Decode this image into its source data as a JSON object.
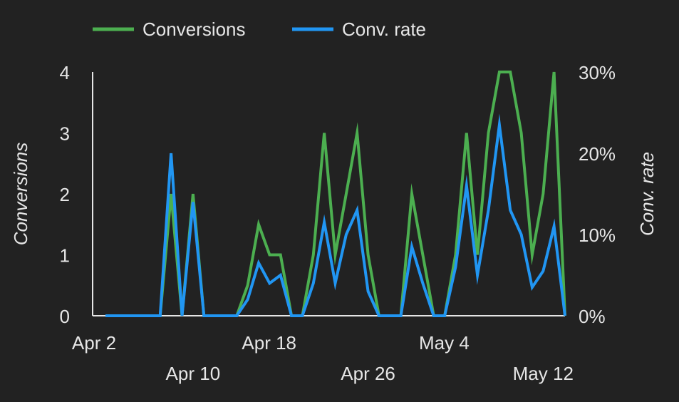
{
  "chart_data": {
    "type": "line",
    "x": [
      "Apr 2",
      "Apr 3",
      "Apr 4",
      "Apr 5",
      "Apr 6",
      "Apr 7",
      "Apr 8",
      "Apr 9",
      "Apr 10",
      "Apr 11",
      "Apr 12",
      "Apr 13",
      "Apr 14",
      "Apr 15",
      "Apr 16",
      "Apr 17",
      "Apr 18",
      "Apr 19",
      "Apr 20",
      "Apr 21",
      "Apr 22",
      "Apr 23",
      "Apr 24",
      "Apr 25",
      "Apr 26",
      "Apr 27",
      "Apr 28",
      "Apr 29",
      "Apr 30",
      "May 1",
      "May 2",
      "May 3",
      "May 4",
      "May 5",
      "May 6",
      "May 7",
      "May 8",
      "May 9",
      "May 10",
      "May 11",
      "May 12",
      "May 13",
      "May 14"
    ],
    "x_tick_labels_row1": [
      "Apr 2",
      "Apr 18",
      "May 4"
    ],
    "x_tick_labels_row2": [
      "Apr 10",
      "Apr 26",
      "May 12"
    ],
    "series": [
      {
        "name": "Conversions",
        "axis": "left",
        "color": "#4caf50",
        "values": [
          0,
          0,
          0,
          0,
          0,
          0,
          2,
          0,
          2,
          0,
          0,
          0,
          0,
          0.5,
          1.5,
          1,
          1,
          0,
          0,
          1,
          3,
          1,
          2,
          3,
          1,
          0,
          0,
          0,
          2,
          1,
          0,
          0,
          1,
          3,
          1,
          3,
          4,
          4,
          3,
          1,
          2,
          4,
          0
        ]
      },
      {
        "name": "Conv. rate",
        "axis": "right",
        "color": "#2196f3",
        "values": [
          0,
          0,
          0,
          0,
          0,
          0,
          20,
          0,
          14,
          0,
          0,
          0,
          0,
          2,
          6.5,
          4,
          5,
          0,
          0,
          4,
          11.5,
          4,
          10,
          13,
          3,
          0,
          0,
          0,
          8.5,
          4,
          0,
          0,
          6,
          16,
          5,
          13,
          23.5,
          13,
          10,
          3.5,
          5.5,
          11,
          0
        ]
      }
    ],
    "y_left": {
      "label": "Conversions",
      "ticks": [
        "0",
        "1",
        "2",
        "3",
        "4"
      ],
      "ylim": [
        0,
        4
      ]
    },
    "y_right": {
      "label": "Conv. rate",
      "ticks": [
        "0%",
        "10%",
        "20%",
        "30%"
      ],
      "ylim": [
        0,
        30
      ]
    },
    "grid": false,
    "legend_position": "top"
  }
}
